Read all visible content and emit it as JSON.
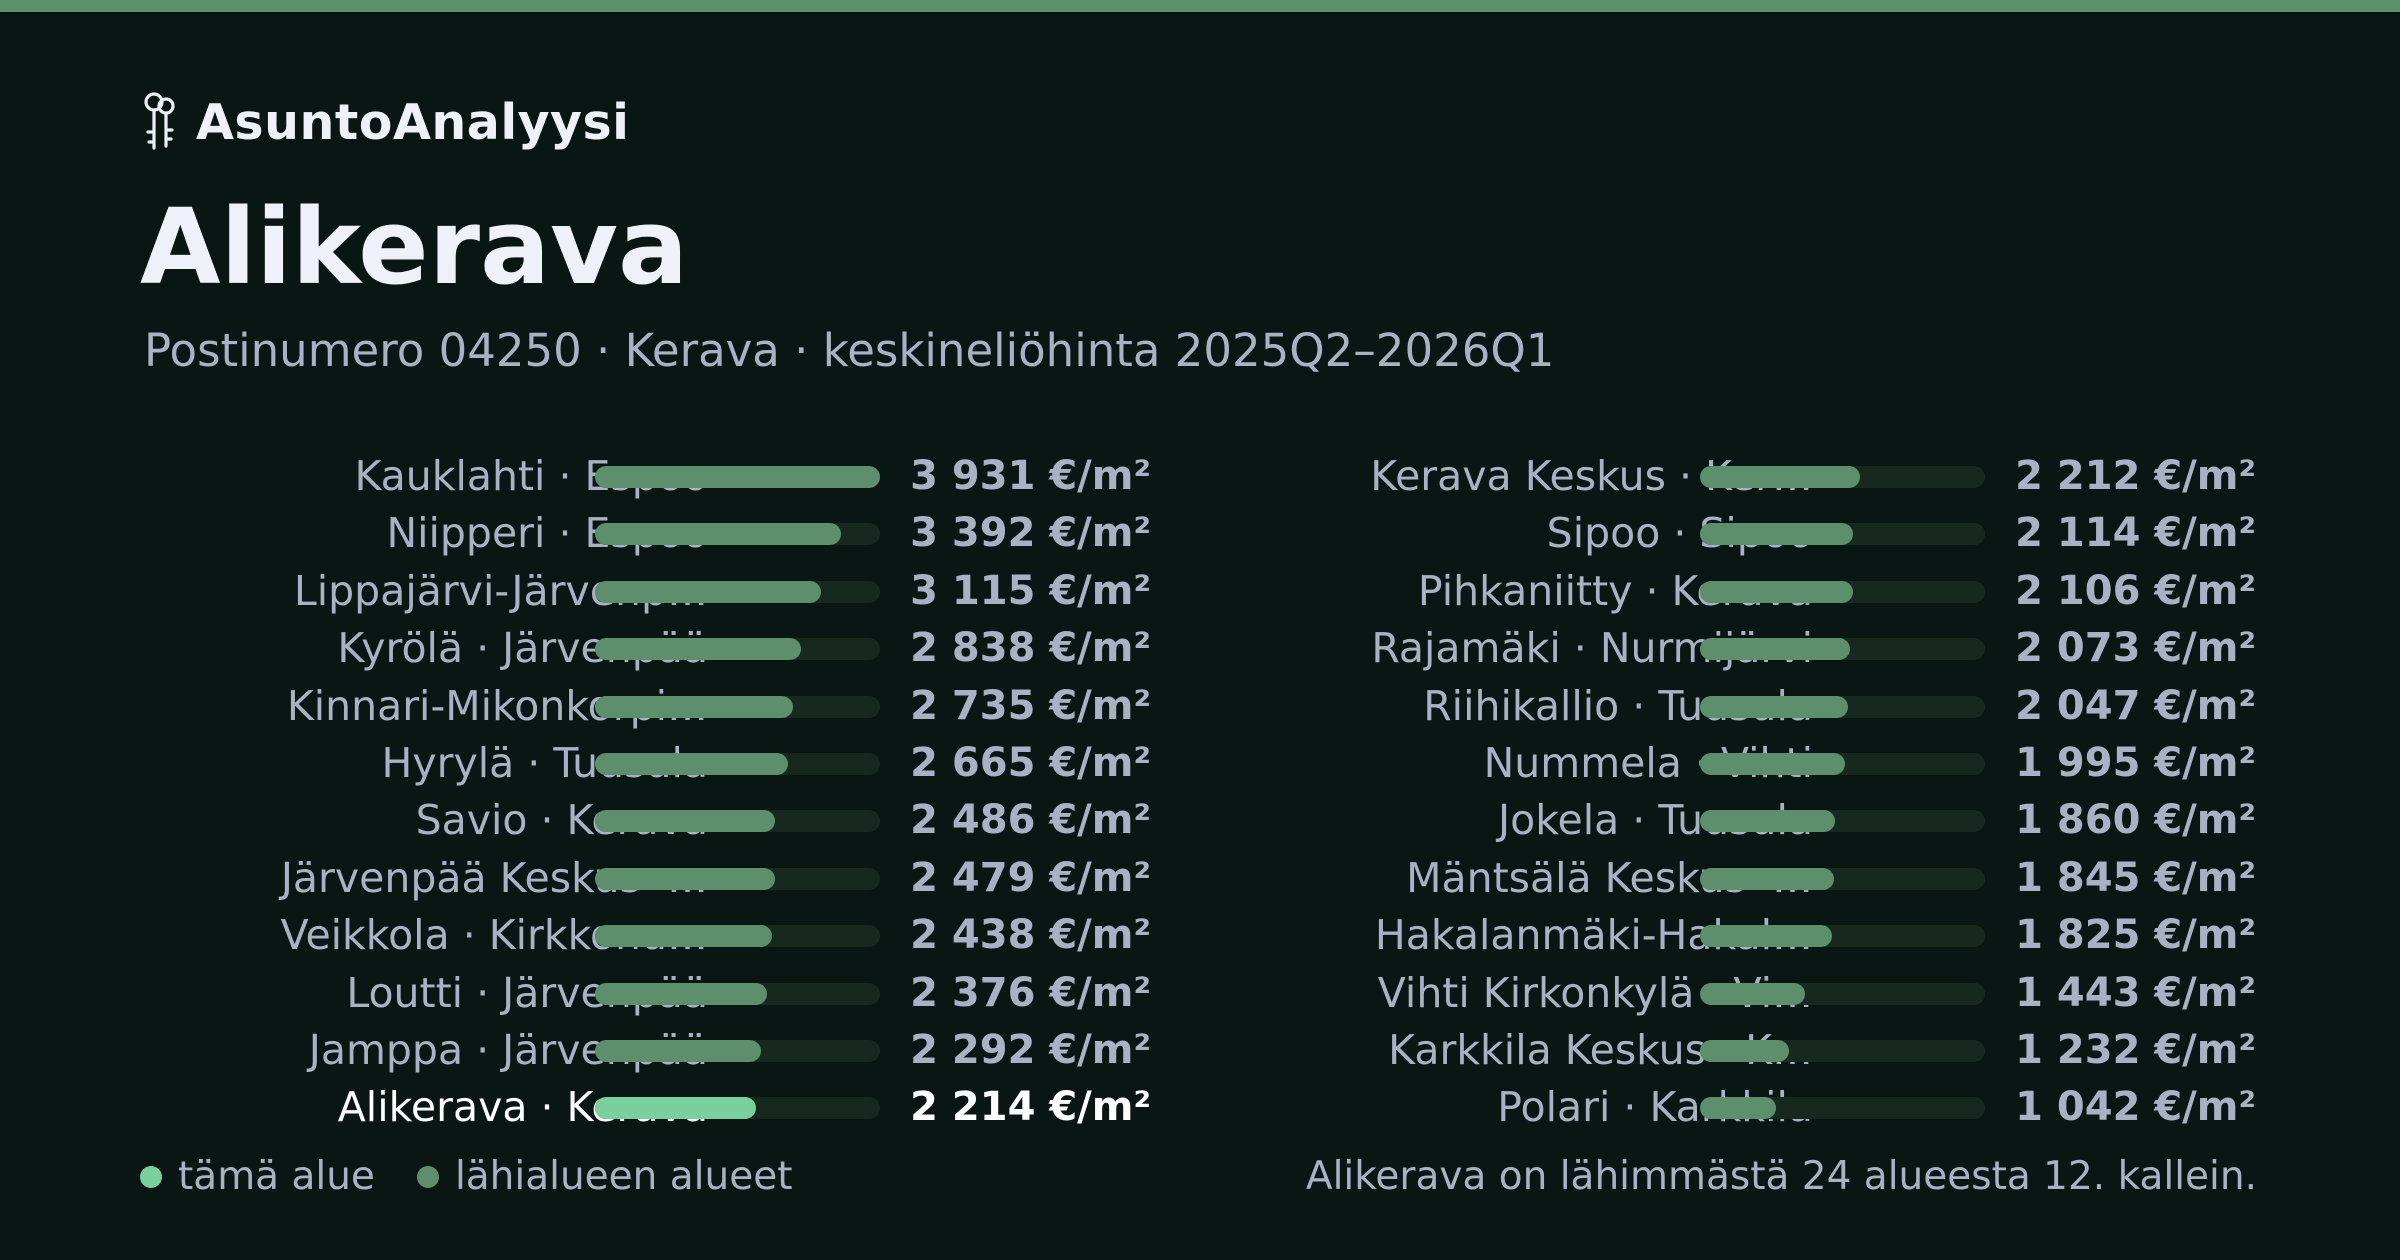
{
  "brand": {
    "name": "AsuntoAnalyysi",
    "icon": "keys-icon"
  },
  "header": {
    "title": "Alikerava",
    "subtitle": "Postinumero 04250 · Kerava · keskineliöhinta 2025Q2–2026Q1"
  },
  "colors": {
    "accent": "#5d8f6c",
    "highlight": "#7ad09d",
    "background": "#0a1613",
    "track": "#17291f"
  },
  "chart_data": {
    "type": "bar",
    "orientation": "horizontal",
    "unit": "€/m²",
    "xlim": [
      0,
      3931
    ],
    "highlight": "Alikerava · Kerava",
    "columns": [
      {
        "categories": [
          "Kauklahti · Espoo",
          "Niipperi · Espoo",
          "Lippajärvi-Järvenp…",
          "Kyrölä · Järvenpää",
          "Kinnari-Mikonkorpi…",
          "Hyrylä · Tuusula",
          "Savio · Kerava",
          "Järvenpää Keskus ·…",
          "Veikkola · Kirkkonu…",
          "Loutti · Järvenpää",
          "Jamppa · Järvenpää",
          "Alikerava · Kerava"
        ],
        "values": [
          3931,
          3392,
          3115,
          2838,
          2735,
          2665,
          2486,
          2479,
          2438,
          2376,
          2292,
          2214
        ],
        "labels": [
          "3 931 €/m²",
          "3 392 €/m²",
          "3 115 €/m²",
          "2 838 €/m²",
          "2 735 €/m²",
          "2 665 €/m²",
          "2 486 €/m²",
          "2 479 €/m²",
          "2 438 €/m²",
          "2 376 €/m²",
          "2 292 €/m²",
          "2 214 €/m²"
        ]
      },
      {
        "categories": [
          "Kerava Keskus · Ker…",
          "Sipoo · Sipoo",
          "Pihkaniitty · Kerava",
          "Rajamäki · Nurmijärvi",
          "Riihikallio · Tuusula",
          "Nummela · Vihti",
          "Jokela · Tuusula",
          "Mäntsälä Keskus ·…",
          "Hakalanmäki-Hakal…",
          "Vihti Kirkonkylä · Vi…",
          "Karkkila Keskus · K…",
          "Polari · Karkkila"
        ],
        "values": [
          2212,
          2114,
          2106,
          2073,
          2047,
          1995,
          1860,
          1845,
          1825,
          1443,
          1232,
          1042
        ],
        "labels": [
          "2 212 €/m²",
          "2 114 €/m²",
          "2 106 €/m²",
          "2 073 €/m²",
          "2 047 €/m²",
          "1 995 €/m²",
          "1 860 €/m²",
          "1 845 €/m²",
          "1 825 €/m²",
          "1 443 €/m²",
          "1 232 €/m²",
          "1 042 €/m²"
        ]
      }
    ]
  },
  "legend": {
    "this_area": "tämä alue",
    "nearby_areas": "lähialueen alueet"
  },
  "summary": "Alikerava on lähimmästä 24 alueesta 12. kallein."
}
